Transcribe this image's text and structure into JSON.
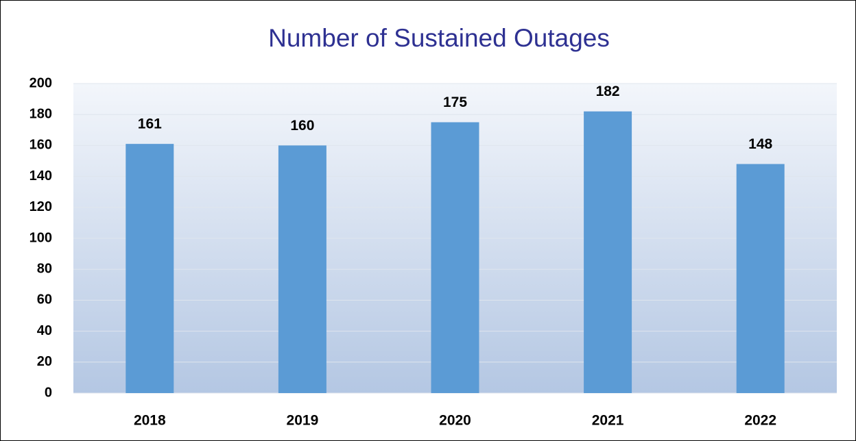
{
  "chart_data": {
    "type": "bar",
    "title": "Number of Sustained Outages",
    "categories": [
      "2018",
      "2019",
      "2020",
      "2021",
      "2022"
    ],
    "values": [
      161,
      160,
      175,
      182,
      148
    ],
    "color": "#5b9bd5",
    "ylim": [
      0,
      200
    ],
    "yticks": [
      0,
      20,
      40,
      60,
      80,
      100,
      120,
      140,
      160,
      180,
      200
    ],
    "grid": true
  }
}
